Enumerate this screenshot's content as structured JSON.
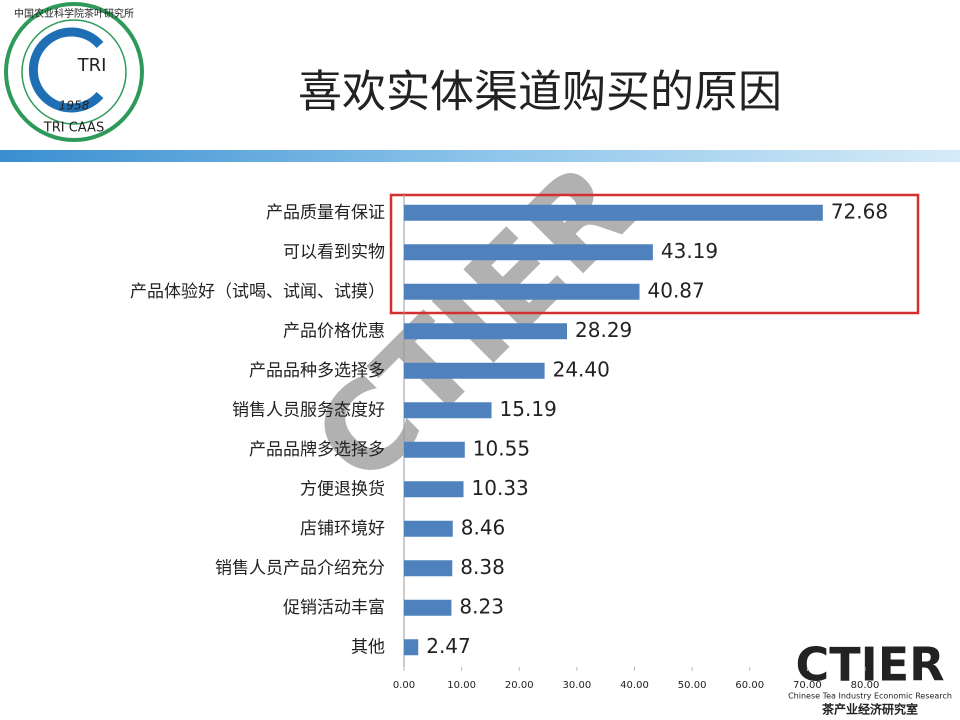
{
  "logo": {
    "text": "TRI",
    "year": "1958",
    "bottom": "TRI CAAS",
    "ring": "中国农业科学院茶叶研究所"
  },
  "watermark": {
    "brand": "CTIER",
    "english": "Chinese Tea Industry Economic Research",
    "chinese": "茶产业经济研究室"
  },
  "chart_data": {
    "type": "bar",
    "orientation": "horizontal",
    "title": "喜欢实体渠道购买的原因",
    "categories": [
      "产品质量有保证",
      "可以看到实物",
      "产品体验好（试喝、试闻、试摸）",
      "产品价格优惠",
      "产品品种多选择多",
      "销售人员服务态度好",
      "产品品牌多选择多",
      "方便退换货",
      "店铺环境好",
      "销售人员产品介绍充分",
      "促销活动丰富",
      "其他"
    ],
    "values": [
      72.68,
      43.19,
      40.87,
      28.29,
      24.4,
      15.19,
      10.55,
      10.33,
      8.46,
      8.38,
      8.23,
      2.47
    ],
    "value_labels": [
      "72.68",
      "43.19",
      "40.87",
      "28.29",
      "24.40",
      "15.19",
      "10.55",
      "10.33",
      "8.46",
      "8.38",
      "8.23",
      "2.47"
    ],
    "color": "#4f81bd",
    "xlim": [
      0,
      80
    ],
    "xticks": [
      {
        "value": 0,
        "label": "0.00"
      },
      {
        "value": 10,
        "label": "10.00"
      },
      {
        "value": 20,
        "label": "20.00"
      },
      {
        "value": 30,
        "label": "30.00"
      },
      {
        "value": 40,
        "label": "40.00"
      },
      {
        "value": 50,
        "label": "50.00"
      },
      {
        "value": 60,
        "label": "60.00"
      },
      {
        "value": 70,
        "label": "70.00"
      },
      {
        "value": 80,
        "label": "80.00"
      }
    ],
    "grid": false
  }
}
